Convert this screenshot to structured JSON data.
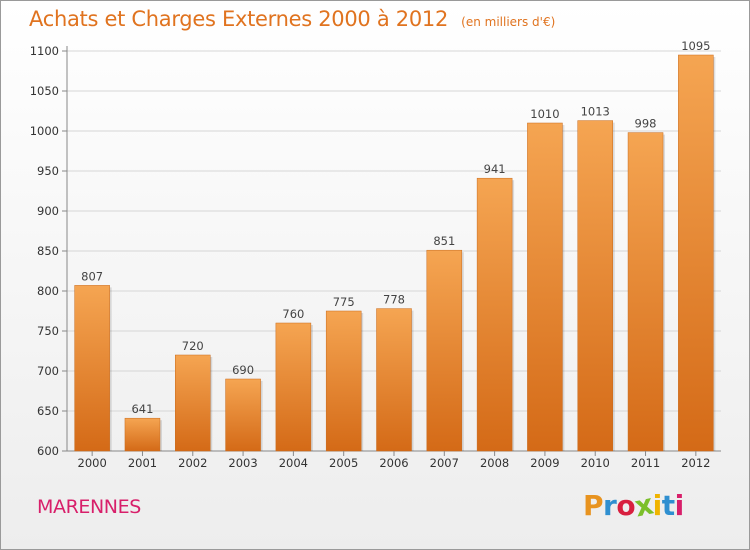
{
  "header": {
    "title": "Achats et Charges Externes 2000 à 2012",
    "subtitle": "(en milliers d'€)"
  },
  "footer": {
    "location": "MARENNES",
    "brand": "Proxiti"
  },
  "colors": {
    "title": "#e0731f",
    "location": "#d81f6a",
    "bar_top": "#f5a552",
    "bar_bottom": "#d46a17",
    "brand_letters": [
      "#e8931f",
      "#2f8fd0",
      "#d81f3f",
      "#7bbf2a",
      "#f0b400",
      "#2f8fd0",
      "#d81f6a"
    ]
  },
  "chart_data": {
    "type": "bar",
    "title": "Achats et Charges Externes 2000 à 2012",
    "subtitle": "(en milliers d'€)",
    "categories": [
      "2000",
      "2001",
      "2002",
      "2003",
      "2004",
      "2005",
      "2006",
      "2007",
      "2008",
      "2009",
      "2010",
      "2011",
      "2012"
    ],
    "values": [
      807,
      641,
      720,
      690,
      760,
      775,
      778,
      851,
      941,
      1010,
      1013,
      998,
      1095
    ],
    "data_labels": [
      "807",
      "641",
      "720",
      "690",
      "760",
      "775",
      "778",
      "851",
      "941",
      "1010",
      "1013",
      "998",
      "1095"
    ],
    "ylim": [
      600,
      1100
    ],
    "yticks": [
      600,
      650,
      700,
      750,
      800,
      850,
      900,
      950,
      1000,
      1050,
      1100
    ],
    "xlabel": "",
    "ylabel": "",
    "grid": true
  }
}
